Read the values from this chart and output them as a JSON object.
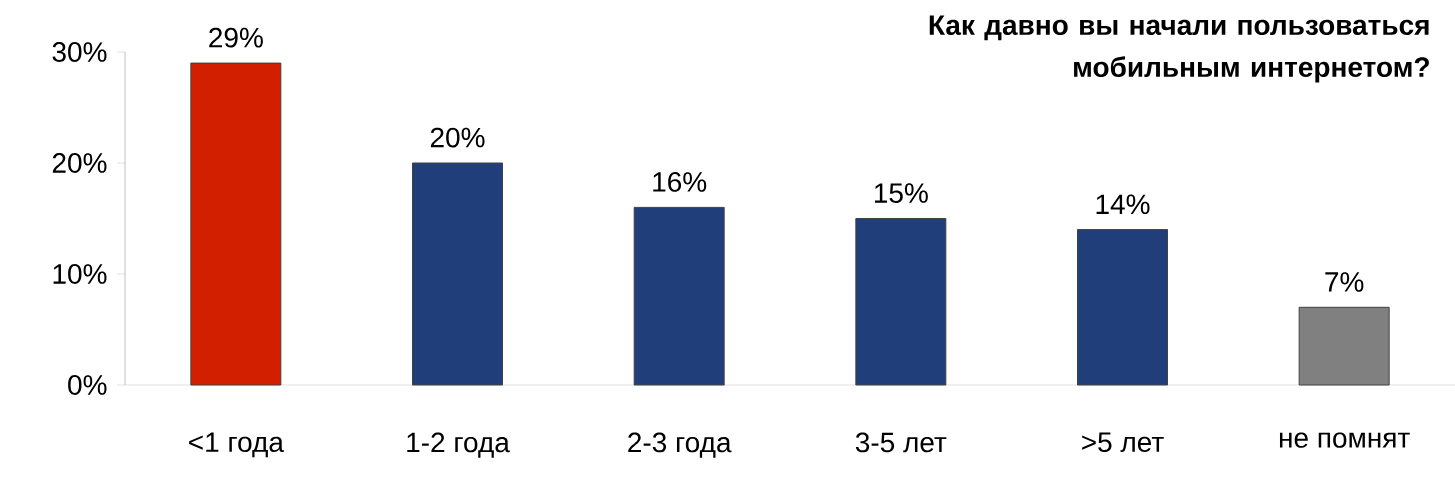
{
  "chart_data": {
    "type": "bar",
    "title": "Как давно вы начали пользоваться мобильным интернетом?",
    "categories": [
      "<1 года",
      "1-2 года",
      "2-3 года",
      "3-5 лет",
      ">5 лет",
      "не помнят"
    ],
    "values": [
      29,
      20,
      16,
      15,
      14,
      7
    ],
    "value_labels": [
      "29%",
      "20%",
      "16%",
      "15%",
      "14%",
      "7%"
    ],
    "colors": [
      "#d11f00",
      "#203f7a",
      "#203f7a",
      "#203f7a",
      "#203f7a",
      "#808080"
    ],
    "ylim": [
      0,
      30
    ],
    "yticks": [
      {
        "value": 0,
        "label": "0%"
      },
      {
        "value": 10,
        "label": "10%"
      },
      {
        "value": 20,
        "label": "20%"
      },
      {
        "value": 30,
        "label": "30%"
      }
    ]
  }
}
